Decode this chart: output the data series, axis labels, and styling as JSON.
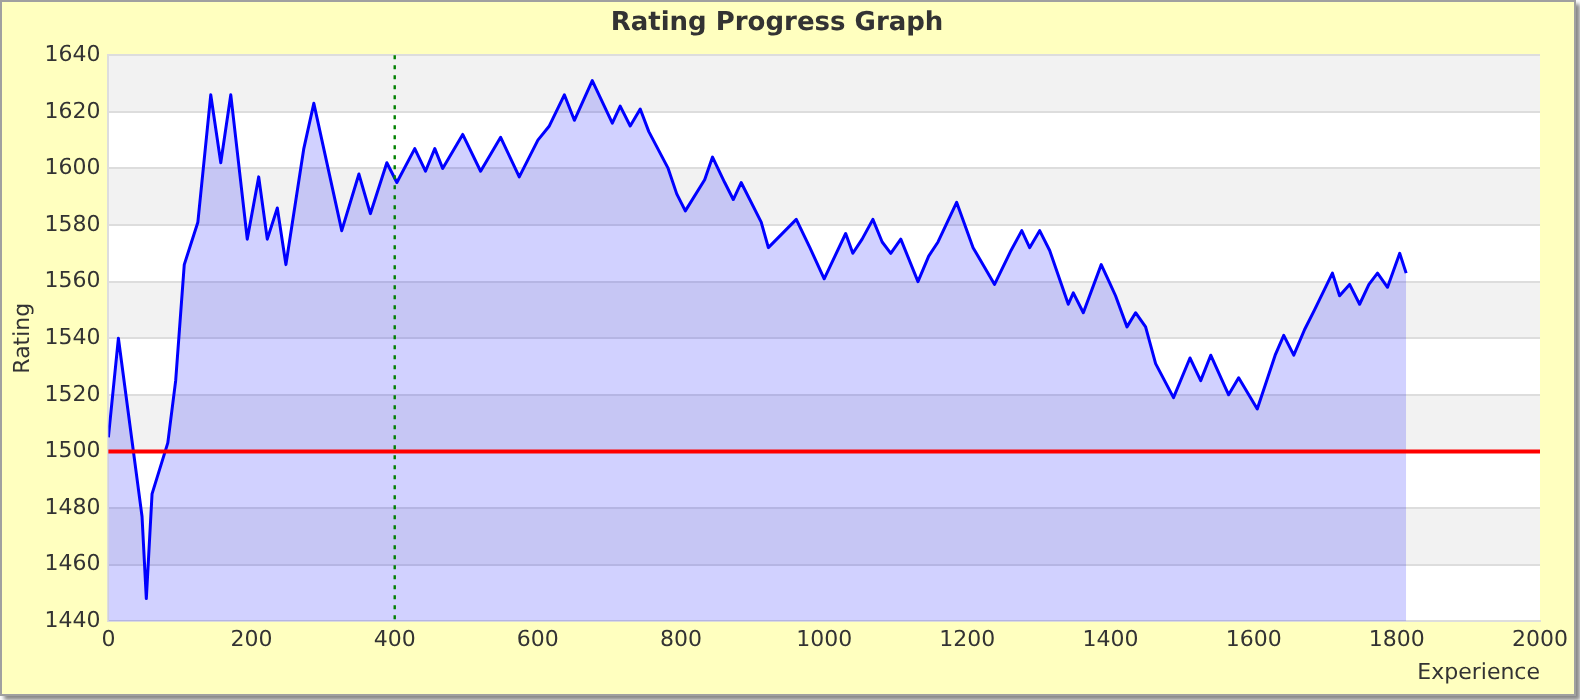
{
  "chart_data": {
    "type": "area",
    "title": "Rating Progress Graph",
    "xlabel": "Experience",
    "ylabel": "Rating",
    "xlim": [
      0,
      2000
    ],
    "xticks": [
      0,
      200,
      400,
      600,
      800,
      1000,
      1200,
      1400,
      1600,
      1800,
      2000
    ],
    "ylim": [
      1440,
      1640
    ],
    "yticks": [
      1440,
      1460,
      1480,
      1500,
      1520,
      1540,
      1560,
      1580,
      1600,
      1620,
      1640
    ],
    "grid": "y",
    "legend": false,
    "marker": "none",
    "line_style": "solid",
    "series": [
      {
        "color": "#0000ff",
        "x": [
          0,
          14,
          47,
          53,
          61,
          83,
          94,
          106,
          125,
          143,
          157,
          171,
          194,
          210,
          222,
          236,
          248,
          273,
          287,
          326,
          350,
          366,
          389,
          403,
          428,
          443,
          456,
          467,
          495,
          520,
          548,
          574,
          600,
          616,
          637,
          651,
          676,
          704,
          715,
          729,
          743,
          755,
          782,
          794,
          806,
          833,
          844,
          861,
          873,
          884,
          912,
          922,
          961,
          980,
          1000,
          1030,
          1040,
          1053,
          1068,
          1081,
          1093,
          1107,
          1131,
          1146,
          1159,
          1185,
          1208,
          1238,
          1261,
          1276,
          1287,
          1301,
          1315,
          1341,
          1348,
          1362,
          1387,
          1398,
          1407,
          1423,
          1435,
          1449,
          1463,
          1488,
          1511,
          1526,
          1540,
          1565,
          1579,
          1605,
          1630,
          1642,
          1656,
          1671,
          1685,
          1710,
          1720,
          1734,
          1748,
          1761,
          1773,
          1787,
          1804,
          1813
        ],
        "values": [
          1505,
          1540,
          1477,
          1448,
          1485,
          1503,
          1525,
          1566,
          1581,
          1626,
          1602,
          1626,
          1575,
          1597,
          1575,
          1586,
          1566,
          1607,
          1623,
          1578,
          1598,
          1584,
          1602,
          1595,
          1607,
          1599,
          1607,
          1600,
          1612,
          1599,
          1611,
          1597,
          1610,
          1615,
          1626,
          1617,
          1631,
          1616,
          1622,
          1615,
          1621,
          1613,
          1600,
          1591,
          1585,
          1596,
          1604,
          1595,
          1589,
          1595,
          1581,
          1572,
          1582,
          1572,
          1561,
          1577,
          1570,
          1575,
          1582,
          1574,
          1570,
          1575,
          1560,
          1569,
          1574,
          1588,
          1572,
          1559,
          1571,
          1578,
          1572,
          1578,
          1571,
          1552,
          1556,
          1549,
          1566,
          1560,
          1555,
          1544,
          1549,
          1544,
          1531,
          1519,
          1533,
          1525,
          1534,
          1520,
          1526,
          1515,
          1534,
          1541,
          1534,
          1543,
          1550,
          1563,
          1555,
          1559,
          1552,
          1559,
          1563,
          1558,
          1570,
          1563
        ]
      }
    ],
    "ref_lines": [
      {
        "axis": "y",
        "value": 1500,
        "color": "#ff0000",
        "line_style": "solid"
      },
      {
        "axis": "x",
        "value": 400,
        "color": "#008000",
        "line_style": "dotted"
      }
    ]
  }
}
